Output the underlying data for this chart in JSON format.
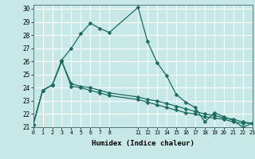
{
  "xlabel": "Humidex (Indice chaleur)",
  "bg_color": "#c8e8e8",
  "grid_color": "#ffffff",
  "line_color": "#1a6b5e",
  "xlim": [
    0,
    23
  ],
  "ylim": [
    21,
    30.3
  ],
  "xtick_vals": [
    0,
    1,
    2,
    3,
    4,
    5,
    6,
    7,
    8,
    11,
    12,
    13,
    14,
    15,
    16,
    17,
    18,
    19,
    20,
    21,
    22,
    23
  ],
  "ytick_vals": [
    21,
    22,
    23,
    24,
    25,
    26,
    27,
    28,
    29,
    30
  ],
  "line1_x": [
    0,
    1,
    2,
    3,
    4,
    5,
    6,
    7,
    8,
    11,
    12,
    13,
    14,
    15,
    16,
    17,
    18,
    19,
    20,
    21,
    22,
    23
  ],
  "line1_y": [
    21.2,
    23.8,
    24.2,
    26.1,
    27.0,
    28.1,
    28.9,
    28.5,
    28.2,
    30.1,
    27.5,
    25.9,
    24.9,
    23.5,
    22.9,
    22.5,
    21.4,
    22.1,
    21.8,
    21.5,
    21.0,
    21.3
  ],
  "line2_x": [
    0,
    1,
    2,
    3,
    4,
    5,
    6,
    7,
    8,
    11,
    12,
    13,
    14,
    15,
    16,
    17,
    18,
    19,
    20,
    21,
    22,
    23
  ],
  "line2_y": [
    21.2,
    23.8,
    24.2,
    26.0,
    24.1,
    24.0,
    23.8,
    23.6,
    23.4,
    23.1,
    22.9,
    22.7,
    22.5,
    22.3,
    22.1,
    22.0,
    21.8,
    21.7,
    21.6,
    21.4,
    21.3,
    21.3
  ],
  "line3_x": [
    0,
    1,
    2,
    3,
    4,
    5,
    6,
    7,
    8,
    11,
    12,
    13,
    14,
    15,
    16,
    17,
    18,
    19,
    20,
    21,
    22,
    23
  ],
  "line3_y": [
    21.2,
    23.8,
    24.2,
    26.0,
    24.3,
    24.1,
    24.0,
    23.8,
    23.6,
    23.3,
    23.1,
    23.0,
    22.8,
    22.6,
    22.4,
    22.2,
    22.0,
    21.9,
    21.7,
    21.6,
    21.4,
    21.3
  ]
}
